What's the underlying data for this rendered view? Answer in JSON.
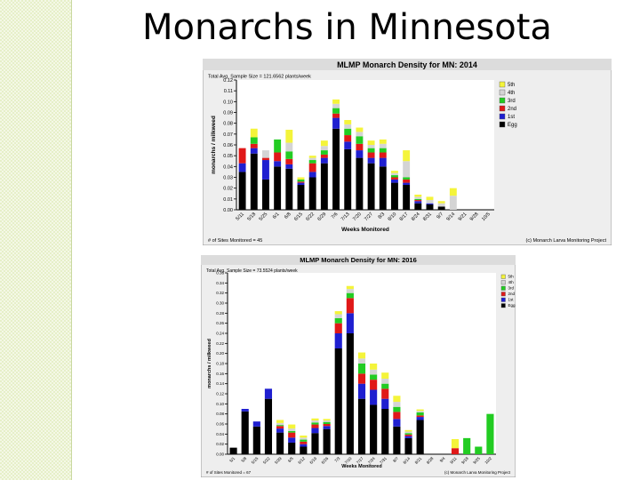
{
  "slide": {
    "title": "Monarchs in Minnesota"
  },
  "colors": {
    "Egg": "#000000",
    "1st": "#1f1fd0",
    "2nd": "#e01818",
    "3rd": "#22cc22",
    "4th": "#d4d4d4",
    "5th": "#f4f43a"
  },
  "chart_data": [
    {
      "type": "bar",
      "stacked": true,
      "title": "MLMP Monarch Density for MN: 2014",
      "subtitle": "Total Avg. Sample Size = 121.6562 plants/week",
      "xlabel": "Weeks Monitored",
      "ylabel": "monarchs / milkweed",
      "footer_left": "# of Sites Monitored = 45",
      "footer_right": "(c) Monarch Larva Monitoring Project",
      "ylim": [
        0,
        0.12
      ],
      "yticks": [
        "0.00",
        "0.01",
        "0.02",
        "0.03",
        "0.04",
        "0.05",
        "0.06",
        "0.07",
        "0.08",
        "0.09",
        "0.10",
        "0.11",
        "0.12"
      ],
      "legend_position": "top-right",
      "categories": [
        "5/11",
        "5/18",
        "5/25",
        "6/1",
        "6/8",
        "6/15",
        "6/22",
        "6/29",
        "7/6",
        "7/13",
        "7/20",
        "7/27",
        "8/3",
        "8/10",
        "8/17",
        "8/24",
        "8/31",
        "9/7",
        "9/14",
        "9/21",
        "9/28",
        "10/5"
      ],
      "series": [
        {
          "name": "Egg",
          "values": [
            0.035,
            0.052,
            0.028,
            0.04,
            0.038,
            0.023,
            0.03,
            0.043,
            0.075,
            0.056,
            0.048,
            0.043,
            0.04,
            0.025,
            0.023,
            0.006,
            0.005,
            0.003,
            0,
            0,
            0,
            0
          ]
        },
        {
          "name": "1st",
          "values": [
            0.008,
            0.005,
            0.018,
            0.005,
            0.004,
            0.002,
            0.005,
            0.005,
            0.01,
            0.007,
            0.007,
            0.005,
            0.008,
            0.003,
            0.002,
            0.002,
            0.001,
            0,
            0,
            0,
            0,
            0
          ]
        },
        {
          "name": "2nd",
          "values": [
            0.014,
            0.004,
            0.002,
            0.008,
            0.005,
            0.001,
            0.008,
            0.003,
            0.004,
            0.006,
            0.006,
            0.005,
            0.005,
            0.002,
            0.003,
            0.001,
            0,
            0,
            0,
            0,
            0,
            0
          ]
        },
        {
          "name": "3rd",
          "values": [
            0,
            0.006,
            0,
            0.012,
            0.007,
            0.002,
            0.003,
            0.004,
            0.005,
            0.006,
            0.007,
            0.004,
            0.004,
            0.002,
            0.002,
            0.001,
            0,
            0,
            0,
            0,
            0,
            0
          ]
        },
        {
          "name": "4th",
          "values": [
            0,
            0,
            0.007,
            0,
            0.008,
            0,
            0.002,
            0.004,
            0.004,
            0.004,
            0.004,
            0.003,
            0.004,
            0.002,
            0.015,
            0.002,
            0.003,
            0.003,
            0.013,
            0,
            0,
            0
          ]
        },
        {
          "name": "5th",
          "values": [
            0,
            0.008,
            0,
            0,
            0.012,
            0.002,
            0.002,
            0.005,
            0.004,
            0.004,
            0.004,
            0.004,
            0.004,
            0.002,
            0.01,
            0.002,
            0.003,
            0.002,
            0.007,
            0,
            0,
            0
          ]
        }
      ]
    },
    {
      "type": "bar",
      "stacked": true,
      "title": "MLMP Monarch Density for MN: 2016",
      "subtitle": "Total Avg. Sample Size = 73.5524 plants/week",
      "xlabel": "Weeks Monitored",
      "ylabel": "monarchs / milkweed",
      "footer_left": "# of Sites Monitored = 67",
      "footer_right": "(c) Monarch Larva Monitoring Project",
      "ylim": [
        0,
        0.36
      ],
      "yticks": [
        "0.00",
        "0.02",
        "0.04",
        "0.06",
        "0.08",
        "0.10",
        "0.12",
        "0.14",
        "0.16",
        "0.18",
        "0.20",
        "0.22",
        "0.24",
        "0.26",
        "0.28",
        "0.30",
        "0.32",
        "0.34",
        "0.36"
      ],
      "legend_position": "top-right",
      "categories": [
        "5/1",
        "5/8",
        "5/15",
        "5/22",
        "5/29",
        "6/5",
        "6/12",
        "6/19",
        "6/26",
        "7/3",
        "7/10",
        "7/17",
        "7/24",
        "7/31",
        "8/7",
        "8/14",
        "8/21",
        "8/28",
        "9/4",
        "9/11",
        "9/18",
        "9/25",
        "10/2"
      ],
      "series": [
        {
          "name": "Egg",
          "values": [
            0.013,
            0.085,
            0.055,
            0.11,
            0.043,
            0.023,
            0.015,
            0.042,
            0.05,
            0.21,
            0.24,
            0.11,
            0.098,
            0.09,
            0.055,
            0.032,
            0.068,
            0,
            0,
            0,
            0,
            0,
            0
          ]
        },
        {
          "name": "1st",
          "values": [
            0,
            0.005,
            0.01,
            0.02,
            0.008,
            0.01,
            0.005,
            0.01,
            0.006,
            0.03,
            0.04,
            0.03,
            0.03,
            0.02,
            0.015,
            0.004,
            0.006,
            0,
            0,
            0,
            0,
            0,
            0
          ]
        },
        {
          "name": "2nd",
          "values": [
            0,
            0,
            0,
            0,
            0.005,
            0.01,
            0.005,
            0.007,
            0.004,
            0.02,
            0.03,
            0.02,
            0.02,
            0.02,
            0.014,
            0.003,
            0.003,
            0,
            0,
            0.012,
            0,
            0,
            0
          ]
        },
        {
          "name": "3rd",
          "values": [
            0,
            0,
            0,
            0,
            0.002,
            0.003,
            0.004,
            0.004,
            0.004,
            0.01,
            0.01,
            0.02,
            0.01,
            0.01,
            0.01,
            0.003,
            0.006,
            0,
            0,
            0,
            0.032,
            0.015,
            0.08
          ]
        },
        {
          "name": "4th",
          "values": [
            0,
            0,
            0,
            0,
            0.004,
            0.005,
            0.004,
            0.004,
            0.003,
            0.008,
            0.008,
            0.01,
            0.01,
            0.01,
            0.01,
            0.003,
            0.003,
            0,
            0,
            0,
            0,
            0,
            0
          ]
        },
        {
          "name": "5th",
          "values": [
            0,
            0,
            0,
            0,
            0.006,
            0.008,
            0.004,
            0.004,
            0.003,
            0.006,
            0.006,
            0.012,
            0.012,
            0.012,
            0.012,
            0.003,
            0.003,
            0,
            0,
            0.018,
            0,
            0,
            0
          ]
        }
      ]
    }
  ]
}
